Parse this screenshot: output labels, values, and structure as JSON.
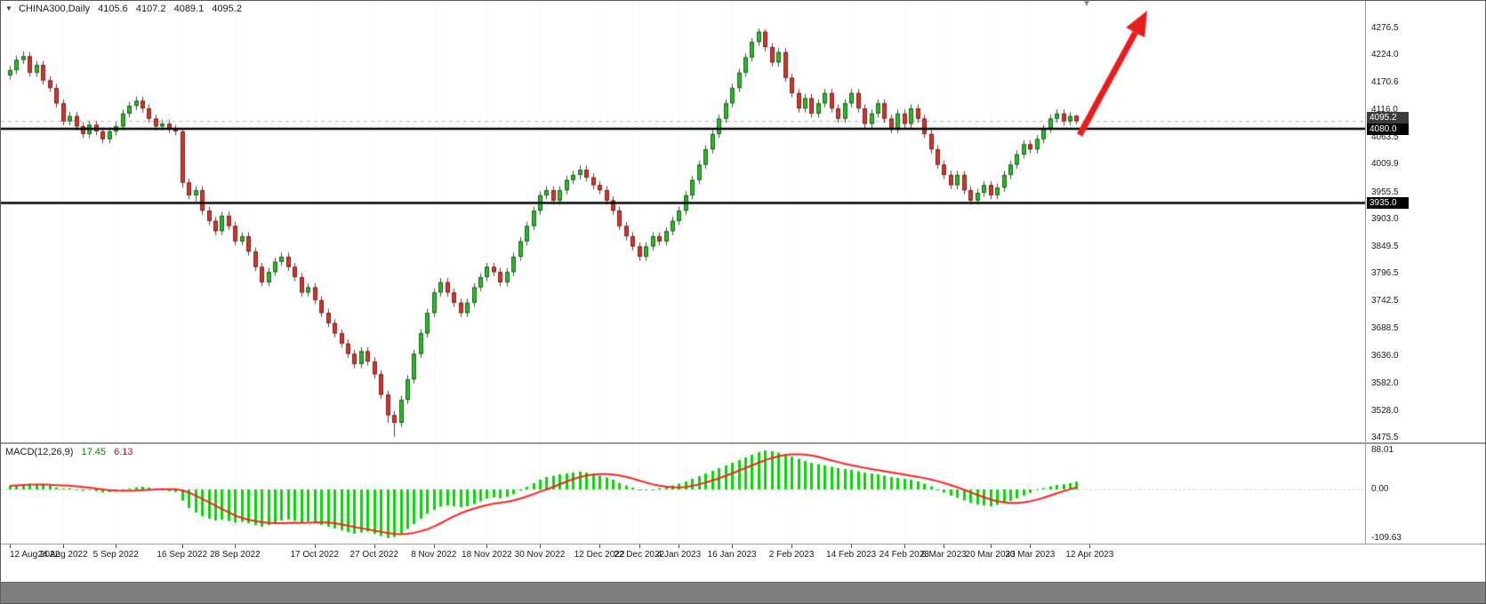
{
  "header": {
    "marker": "▼",
    "symbol": "CHINA300,Daily",
    "open": "4105.6",
    "high": "4107.2",
    "low": "4089.1",
    "close": "4095.2",
    "shift_marker": "▼"
  },
  "macd_label": {
    "name": "MACD(12,26,9)",
    "main": "17.45",
    "signal": "6.13"
  },
  "price_axis": {
    "tags": [
      {
        "label": "4095.2",
        "kind": "current-price"
      },
      {
        "label": "4080.0",
        "kind": "level"
      },
      {
        "label": "3935.0",
        "kind": "level"
      }
    ]
  },
  "colors": {
    "up_fill": "#2db82d",
    "up_border": "#156315",
    "down_fill": "#cd3830",
    "down_border": "#801f19",
    "wick": "#444444",
    "level_line": "#000000",
    "current_price_line": "#b4b4b4",
    "macd_bar": "#00d800",
    "macd_signal": "#ff1f1f",
    "arrow": "#e81e1e",
    "grid": "#e8e8e8",
    "axis_text": "#1a1a1a",
    "separator": "#9a9a9a",
    "bottom_strip": "#7f7f7f"
  },
  "chart_data": {
    "type": "candlestick",
    "symbol": "CHINA300",
    "timeframe": "Daily",
    "note": "OHLC values estimated from chart pixels",
    "current_ohlc": {
      "open": 4105.6,
      "high": 4107.2,
      "low": 4089.1,
      "close": 4095.2
    },
    "current_price": 4095.2,
    "levels": [
      4080.0,
      3935.0
    ],
    "price_axis_ticks": [
      4276.5,
      4224.0,
      4170.6,
      4116.0,
      4063.5,
      4009.9,
      3955.5,
      3903.0,
      3849.5,
      3796.5,
      3742.5,
      3688.5,
      3636.0,
      3582.0,
      3528.0,
      3475.5
    ],
    "visible_price_range": [
      3466.8,
      4330.4
    ],
    "time_labels": [
      {
        "text": "12 Aug 2022",
        "i": 0
      },
      {
        "text": "24 Aug 2022",
        "i": 8
      },
      {
        "text": "5 Sep 2022",
        "i": 16
      },
      {
        "text": "16 Sep 2022",
        "i": 26
      },
      {
        "text": "28 Sep 2022",
        "i": 34
      },
      {
        "text": "17 Oct 2022",
        "i": 46
      },
      {
        "text": "27 Oct 2022",
        "i": 55
      },
      {
        "text": "8 Nov 2022",
        "i": 64
      },
      {
        "text": "18 Nov 2022",
        "i": 72
      },
      {
        "text": "30 Nov 2022",
        "i": 80
      },
      {
        "text": "12 Dec 2022",
        "i": 89
      },
      {
        "text": "22 Dec 2022",
        "i": 95
      },
      {
        "text": "4 Jan 2023",
        "i": 101
      },
      {
        "text": "16 Jan 2023",
        "i": 109
      },
      {
        "text": "2 Feb 2023",
        "i": 118
      },
      {
        "text": "14 Feb 2023",
        "i": 127
      },
      {
        "text": "24 Feb 2023",
        "i": 135
      },
      {
        "text": "8 Mar 2023",
        "i": 141
      },
      {
        "text": "20 Mar 2023",
        "i": 148
      },
      {
        "text": "30 Mar 2023",
        "i": 154
      },
      {
        "text": "12 Apr 2023",
        "i": 163
      }
    ],
    "candles": [
      [
        4185,
        4203,
        4177,
        4195
      ],
      [
        4195,
        4223,
        4187,
        4215
      ],
      [
        4215,
        4232,
        4207,
        4222
      ],
      [
        4222,
        4230,
        4182,
        4190
      ],
      [
        4190,
        4213,
        4182,
        4205
      ],
      [
        4205,
        4213,
        4167,
        4175
      ],
      [
        4175,
        4183,
        4152,
        4160
      ],
      [
        4160,
        4168,
        4122,
        4130
      ],
      [
        4130,
        4138,
        4087,
        4095
      ],
      [
        4095,
        4113,
        4087,
        4105
      ],
      [
        4105,
        4113,
        4077,
        4085
      ],
      [
        4085,
        4093,
        4062,
        4070
      ],
      [
        4070,
        4096,
        4062,
        4088
      ],
      [
        4088,
        4096,
        4067,
        4075
      ],
      [
        4075,
        4083,
        4052,
        4060
      ],
      [
        4060,
        4083,
        4052,
        4075
      ],
      [
        4075,
        4093,
        4067,
        4085
      ],
      [
        4085,
        4118,
        4077,
        4110
      ],
      [
        4110,
        4133,
        4102,
        4125
      ],
      [
        4125,
        4143,
        4117,
        4135
      ],
      [
        4135,
        4143,
        4112,
        4120
      ],
      [
        4120,
        4128,
        4092,
        4100
      ],
      [
        4100,
        4108,
        4077,
        4085
      ],
      [
        4085,
        4098,
        4077,
        4090
      ],
      [
        4090,
        4098,
        4072,
        4080
      ],
      [
        4080,
        4088,
        4067,
        4075
      ],
      [
        4075,
        4080,
        3965,
        3975
      ],
      [
        3975,
        3983,
        3942,
        3950
      ],
      [
        3950,
        3968,
        3938,
        3960
      ],
      [
        3960,
        3968,
        3912,
        3920
      ],
      [
        3920,
        3928,
        3892,
        3900
      ],
      [
        3900,
        3908,
        3872,
        3880
      ],
      [
        3880,
        3918,
        3872,
        3910
      ],
      [
        3910,
        3918,
        3882,
        3890
      ],
      [
        3890,
        3898,
        3852,
        3860
      ],
      [
        3860,
        3878,
        3852,
        3870
      ],
      [
        3870,
        3878,
        3832,
        3840
      ],
      [
        3840,
        3848,
        3802,
        3810
      ],
      [
        3810,
        3818,
        3772,
        3780
      ],
      [
        3780,
        3808,
        3772,
        3800
      ],
      [
        3800,
        3828,
        3792,
        3820
      ],
      [
        3820,
        3838,
        3812,
        3830
      ],
      [
        3830,
        3838,
        3802,
        3810
      ],
      [
        3810,
        3818,
        3782,
        3790
      ],
      [
        3790,
        3798,
        3752,
        3760
      ],
      [
        3760,
        3778,
        3752,
        3770
      ],
      [
        3770,
        3778,
        3737,
        3745
      ],
      [
        3745,
        3753,
        3712,
        3720
      ],
      [
        3720,
        3728,
        3692,
        3700
      ],
      [
        3700,
        3708,
        3672,
        3680
      ],
      [
        3680,
        3688,
        3652,
        3660
      ],
      [
        3660,
        3668,
        3632,
        3640
      ],
      [
        3640,
        3648,
        3612,
        3620
      ],
      [
        3620,
        3653,
        3612,
        3645
      ],
      [
        3645,
        3653,
        3617,
        3625
      ],
      [
        3625,
        3633,
        3592,
        3600
      ],
      [
        3600,
        3608,
        3552,
        3560
      ],
      [
        3560,
        3568,
        3505,
        3520
      ],
      [
        3520,
        3528,
        3478,
        3505
      ],
      [
        3505,
        3558,
        3497,
        3550
      ],
      [
        3550,
        3598,
        3542,
        3590
      ],
      [
        3590,
        3648,
        3582,
        3640
      ],
      [
        3640,
        3688,
        3632,
        3680
      ],
      [
        3680,
        3728,
        3672,
        3720
      ],
      [
        3720,
        3768,
        3712,
        3760
      ],
      [
        3760,
        3788,
        3752,
        3780
      ],
      [
        3780,
        3788,
        3752,
        3760
      ],
      [
        3760,
        3768,
        3732,
        3740
      ],
      [
        3740,
        3748,
        3712,
        3720
      ],
      [
        3720,
        3748,
        3712,
        3740
      ],
      [
        3740,
        3778,
        3732,
        3770
      ],
      [
        3770,
        3798,
        3762,
        3790
      ],
      [
        3790,
        3818,
        3782,
        3810
      ],
      [
        3810,
        3818,
        3792,
        3800
      ],
      [
        3800,
        3808,
        3772,
        3780
      ],
      [
        3780,
        3808,
        3772,
        3800
      ],
      [
        3800,
        3838,
        3792,
        3830
      ],
      [
        3830,
        3868,
        3822,
        3860
      ],
      [
        3860,
        3898,
        3852,
        3890
      ],
      [
        3890,
        3928,
        3882,
        3920
      ],
      [
        3920,
        3958,
        3912,
        3950
      ],
      [
        3950,
        3968,
        3942,
        3960
      ],
      [
        3960,
        3968,
        3932,
        3940
      ],
      [
        3940,
        3968,
        3932,
        3960
      ],
      [
        3960,
        3988,
        3952,
        3980
      ],
      [
        3980,
        3998,
        3972,
        3990
      ],
      [
        3990,
        4008,
        3982,
        4000
      ],
      [
        4000,
        4008,
        3977,
        3985
      ],
      [
        3985,
        3993,
        3962,
        3970
      ],
      [
        3970,
        3978,
        3952,
        3960
      ],
      [
        3960,
        3968,
        3932,
        3940
      ],
      [
        3940,
        3948,
        3912,
        3920
      ],
      [
        3920,
        3928,
        3882,
        3890
      ],
      [
        3890,
        3898,
        3862,
        3870
      ],
      [
        3870,
        3878,
        3842,
        3850
      ],
      [
        3850,
        3858,
        3822,
        3830
      ],
      [
        3830,
        3858,
        3822,
        3850
      ],
      [
        3850,
        3878,
        3842,
        3870
      ],
      [
        3870,
        3878,
        3852,
        3860
      ],
      [
        3860,
        3888,
        3852,
        3880
      ],
      [
        3880,
        3908,
        3872,
        3900
      ],
      [
        3900,
        3928,
        3892,
        3920
      ],
      [
        3920,
        3958,
        3912,
        3950
      ],
      [
        3950,
        3988,
        3942,
        3980
      ],
      [
        3980,
        4018,
        3972,
        4010
      ],
      [
        4010,
        4048,
        4002,
        4040
      ],
      [
        4040,
        4078,
        4032,
        4070
      ],
      [
        4070,
        4108,
        4062,
        4100
      ],
      [
        4100,
        4138,
        4092,
        4130
      ],
      [
        4130,
        4168,
        4122,
        4160
      ],
      [
        4160,
        4198,
        4152,
        4190
      ],
      [
        4190,
        4228,
        4182,
        4220
      ],
      [
        4220,
        4258,
        4212,
        4250
      ],
      [
        4250,
        4276.5,
        4242,
        4270
      ],
      [
        4270,
        4275,
        4232,
        4240
      ],
      [
        4240,
        4248,
        4202,
        4210
      ],
      [
        4210,
        4238,
        4202,
        4230
      ],
      [
        4230,
        4238,
        4172,
        4180
      ],
      [
        4180,
        4188,
        4142,
        4150
      ],
      [
        4150,
        4158,
        4112,
        4120
      ],
      [
        4120,
        4148,
        4112,
        4140
      ],
      [
        4140,
        4148,
        4102,
        4110
      ],
      [
        4110,
        4138,
        4102,
        4130
      ],
      [
        4130,
        4158,
        4122,
        4150
      ],
      [
        4150,
        4158,
        4112,
        4120
      ],
      [
        4120,
        4128,
        4092,
        4100
      ],
      [
        4100,
        4138,
        4092,
        4130
      ],
      [
        4130,
        4158,
        4122,
        4150
      ],
      [
        4150,
        4158,
        4112,
        4120
      ],
      [
        4120,
        4128,
        4082,
        4090
      ],
      [
        4090,
        4118,
        4082,
        4110
      ],
      [
        4110,
        4138,
        4102,
        4130
      ],
      [
        4130,
        4138,
        4092,
        4100
      ],
      [
        4100,
        4108,
        4072,
        4080
      ],
      [
        4080,
        4118,
        4072,
        4110
      ],
      [
        4110,
        4118,
        4082,
        4090
      ],
      [
        4090,
        4128,
        4082,
        4120
      ],
      [
        4120,
        4128,
        4092,
        4100
      ],
      [
        4100,
        4108,
        4062,
        4070
      ],
      [
        4070,
        4078,
        4032,
        4040
      ],
      [
        4040,
        4048,
        4002,
        4010
      ],
      [
        4010,
        4018,
        3982,
        3990
      ],
      [
        3990,
        3998,
        3962,
        3970
      ],
      [
        3970,
        3998,
        3962,
        3990
      ],
      [
        3990,
        3998,
        3952,
        3960
      ],
      [
        3960,
        3968,
        3932,
        3940
      ],
      [
        3940,
        3963,
        3932,
        3955
      ],
      [
        3955,
        3978,
        3947,
        3970
      ],
      [
        3970,
        3978,
        3942,
        3950
      ],
      [
        3950,
        3973,
        3942,
        3965
      ],
      [
        3965,
        3998,
        3957,
        3990
      ],
      [
        3990,
        4018,
        3982,
        4010
      ],
      [
        4010,
        4038,
        4002,
        4030
      ],
      [
        4030,
        4058,
        4022,
        4050
      ],
      [
        4050,
        4058,
        4032,
        4040
      ],
      [
        4040,
        4068,
        4032,
        4060
      ],
      [
        4060,
        4088,
        4052,
        4080
      ],
      [
        4080,
        4108,
        4072,
        4100
      ],
      [
        4100,
        4118,
        4092,
        4110
      ],
      [
        4110,
        4118,
        4087,
        4095
      ],
      [
        4095,
        4113,
        4087,
        4105
      ],
      [
        4105.6,
        4107.2,
        4089.1,
        4095.2
      ]
    ],
    "macd": {
      "params": [
        12,
        26,
        9
      ],
      "axis_ticks": [
        88.01,
        0.0,
        -109.63
      ],
      "current_main": 17.45,
      "current_signal": 6.13,
      "main": [
        8,
        10,
        12,
        13,
        12,
        10,
        8,
        5,
        2,
        3,
        0,
        -3,
        -2,
        -4,
        -7,
        -6,
        -5,
        -2,
        2,
        5,
        6,
        4,
        1,
        -2,
        -4,
        -6,
        -25,
        -42,
        -52,
        -60,
        -66,
        -70,
        -68,
        -71,
        -75,
        -73,
        -76,
        -80,
        -84,
        -80,
        -75,
        -70,
        -68,
        -71,
        -74,
        -72,
        -76,
        -80,
        -84,
        -88,
        -92,
        -96,
        -100,
        -97,
        -95,
        -100,
        -105,
        -109.63,
        -107,
        -99,
        -89,
        -78,
        -66,
        -55,
        -46,
        -39,
        -36,
        -38,
        -40,
        -38,
        -33,
        -27,
        -21,
        -18,
        -20,
        -17,
        -11,
        -3,
        6,
        14,
        22,
        28,
        31,
        34,
        36,
        38,
        40,
        38,
        35,
        31,
        27,
        22,
        15,
        9,
        4,
        0,
        -2,
        0,
        3,
        6,
        9,
        13,
        18,
        24,
        30,
        36,
        42,
        48,
        54,
        60,
        66,
        72,
        78,
        84,
        88.01,
        86,
        83,
        79,
        74,
        69,
        64,
        60,
        57,
        54,
        51,
        48,
        46,
        44,
        41,
        38,
        36,
        34,
        31,
        28,
        26,
        24,
        22,
        18,
        13,
        7,
        0,
        -7,
        -14,
        -19,
        -25,
        -30,
        -34,
        -36,
        -38,
        -35,
        -30,
        -26,
        -20,
        -14,
        -8,
        -2,
        3,
        7,
        10,
        12,
        14,
        17.45
      ]
    },
    "annotations": [
      {
        "type": "arrow",
        "direction": "up-right",
        "color": "#e81e1e"
      }
    ]
  }
}
